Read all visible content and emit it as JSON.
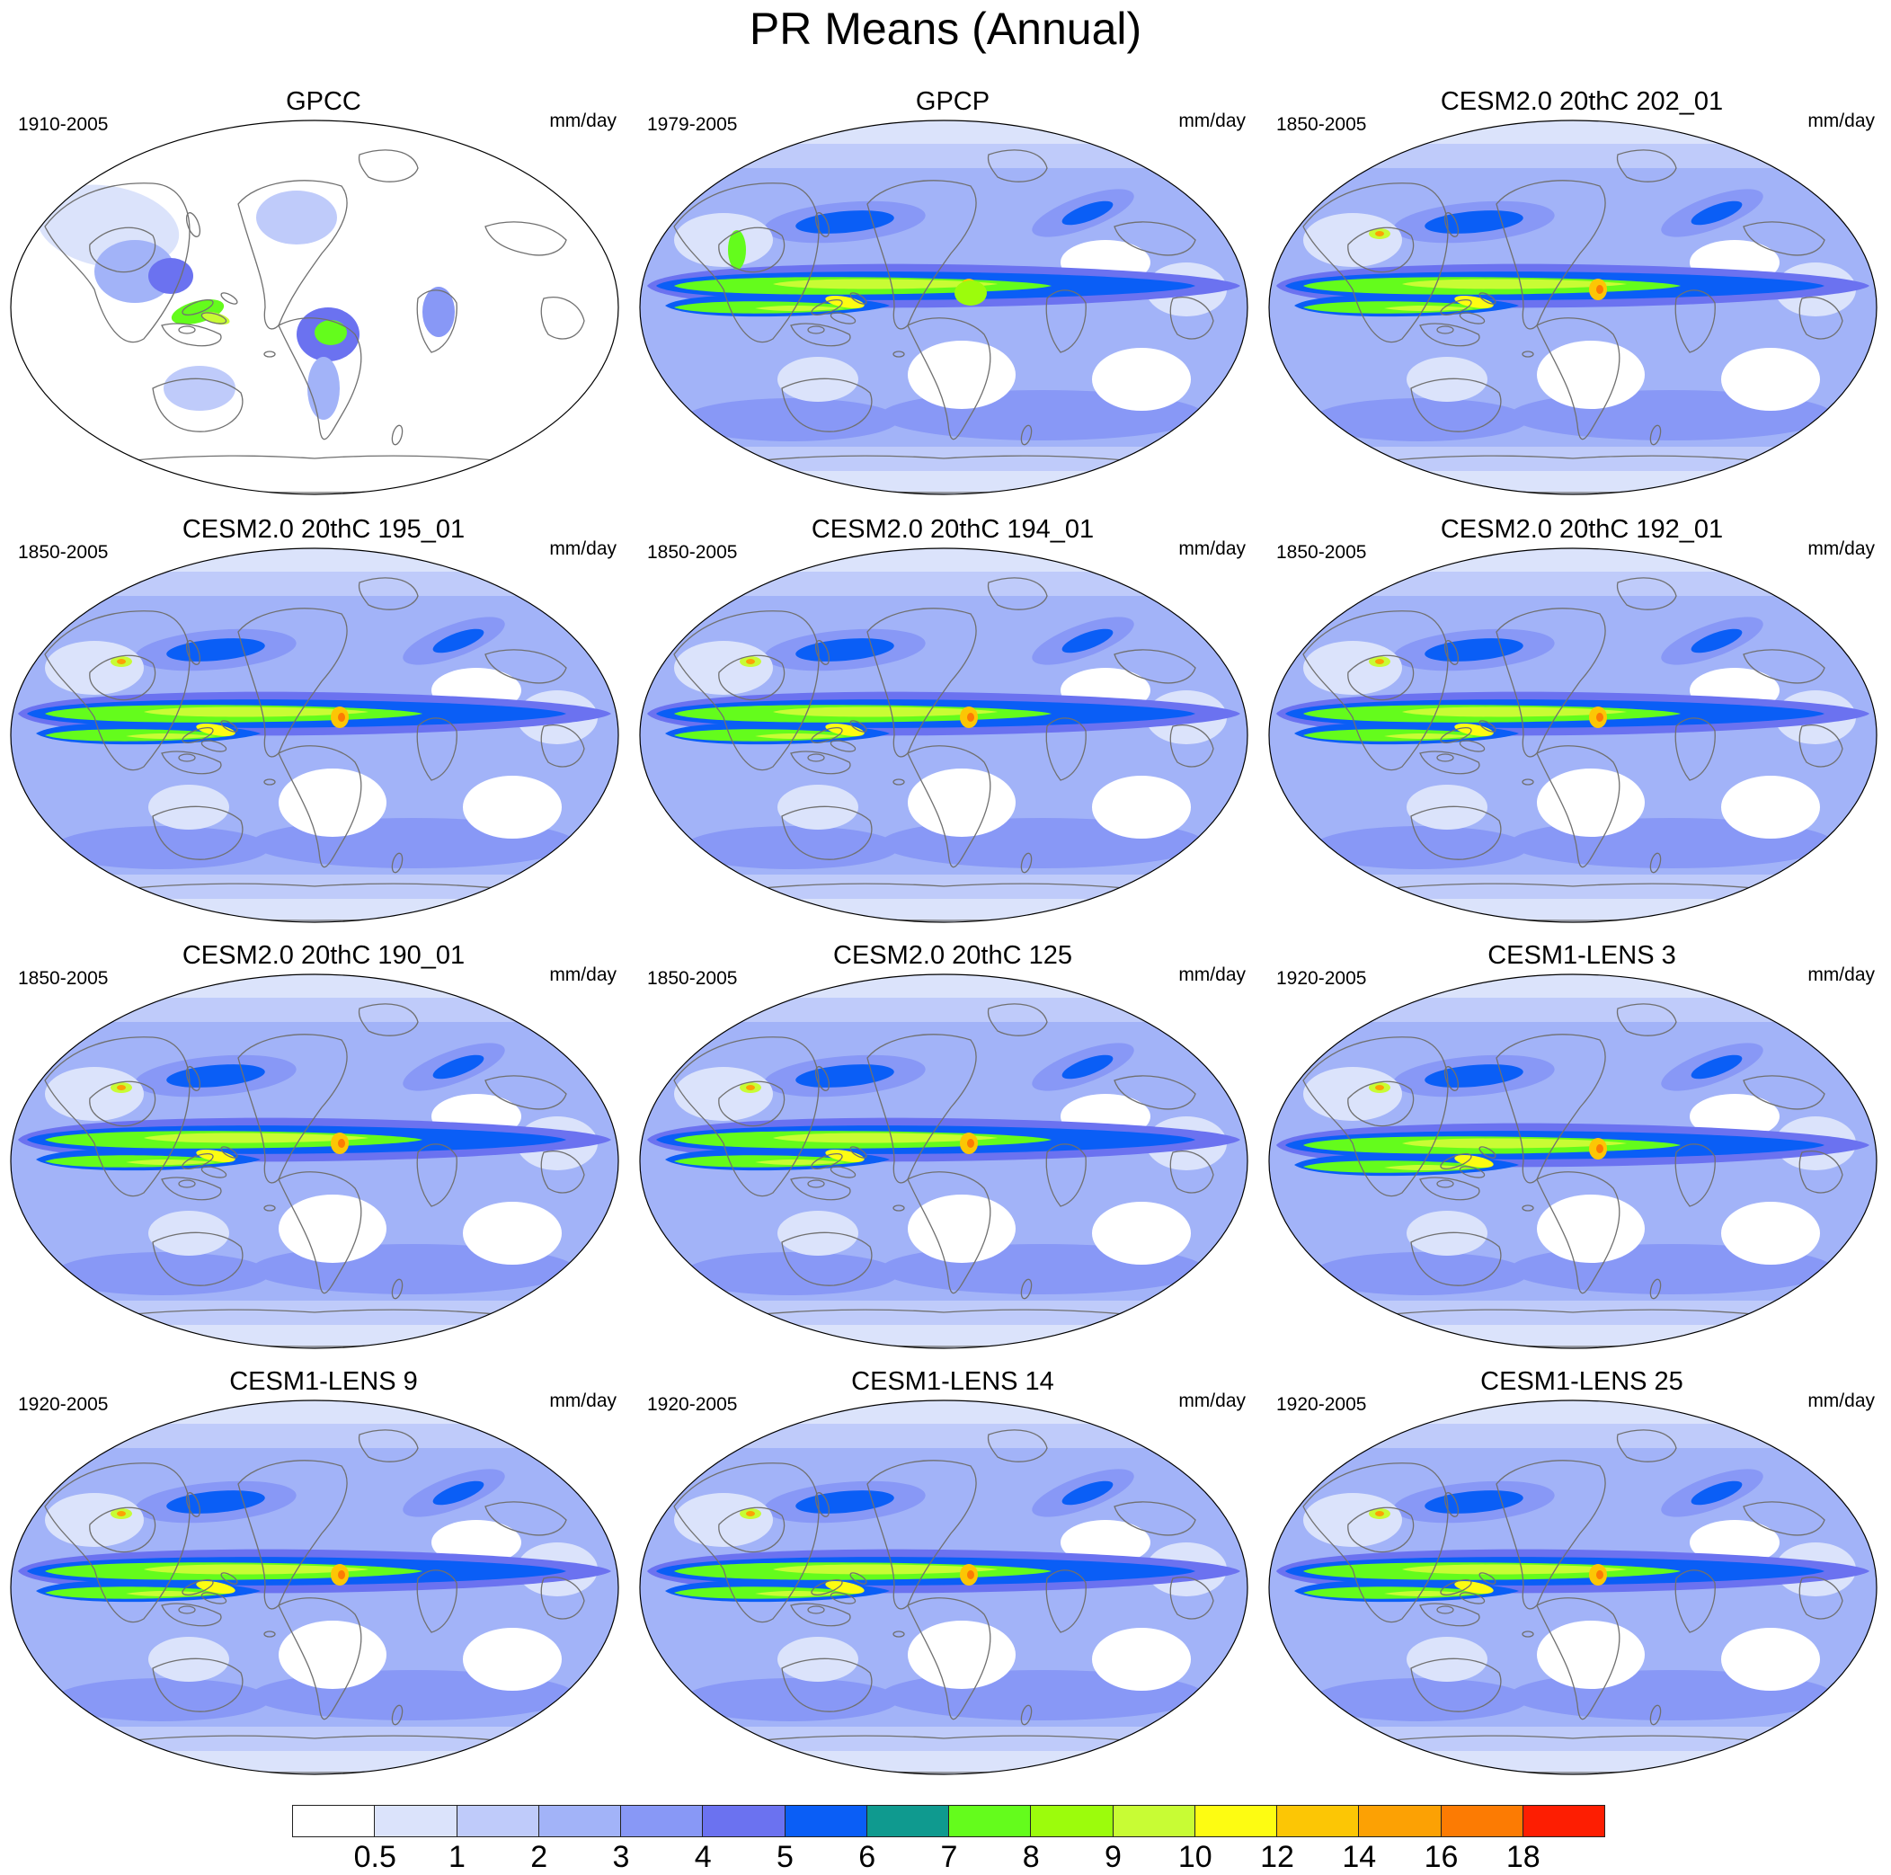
{
  "title": "PR Means (Annual)",
  "colorbar": {
    "colors": [
      "#ffffff",
      "#dbe3fb",
      "#bfcbfa",
      "#a2b3f8",
      "#8898f6",
      "#6b72f0",
      "#0a5ef6",
      "#0f9a8f",
      "#64fc1c",
      "#9cfc0c",
      "#c8fc34",
      "#fdfc12",
      "#fcc605",
      "#fca104",
      "#fc7b03",
      "#fd1e02"
    ],
    "labels": [
      "0.5",
      "1",
      "2",
      "3",
      "4",
      "5",
      "6",
      "7",
      "8",
      "9",
      "10",
      "12",
      "14",
      "16",
      "18"
    ]
  },
  "panels": [
    {
      "title": "GPCC",
      "period": "1910-2005",
      "units": "mm/day",
      "style": "obs-land"
    },
    {
      "title": "GPCP",
      "period": "1979-2005",
      "units": "mm/day",
      "style": "obs"
    },
    {
      "title": "CESM2.0 20thC 202_01",
      "period": "1850-2005",
      "units": "mm/day",
      "style": "model"
    },
    {
      "title": "CESM2.0 20thC 195_01",
      "period": "1850-2005",
      "units": "mm/day",
      "style": "model"
    },
    {
      "title": "CESM2.0 20thC 194_01",
      "period": "1850-2005",
      "units": "mm/day",
      "style": "model"
    },
    {
      "title": "CESM2.0 20thC 192_01",
      "period": "1850-2005",
      "units": "mm/day",
      "style": "model"
    },
    {
      "title": "CESM2.0 20thC 190_01",
      "period": "1850-2005",
      "units": "mm/day",
      "style": "model"
    },
    {
      "title": "CESM2.0 20thC 125",
      "period": "1850-2005",
      "units": "mm/day",
      "style": "model"
    },
    {
      "title": "CESM1-LENS 3",
      "period": "1920-2005",
      "units": "mm/day",
      "style": "lens"
    },
    {
      "title": "CESM1-LENS 9",
      "period": "1920-2005",
      "units": "mm/day",
      "style": "lens"
    },
    {
      "title": "CESM1-LENS 14",
      "period": "1920-2005",
      "units": "mm/day",
      "style": "lens"
    },
    {
      "title": "CESM1-LENS 25",
      "period": "1920-2005",
      "units": "mm/day",
      "style": "lens"
    }
  ]
}
